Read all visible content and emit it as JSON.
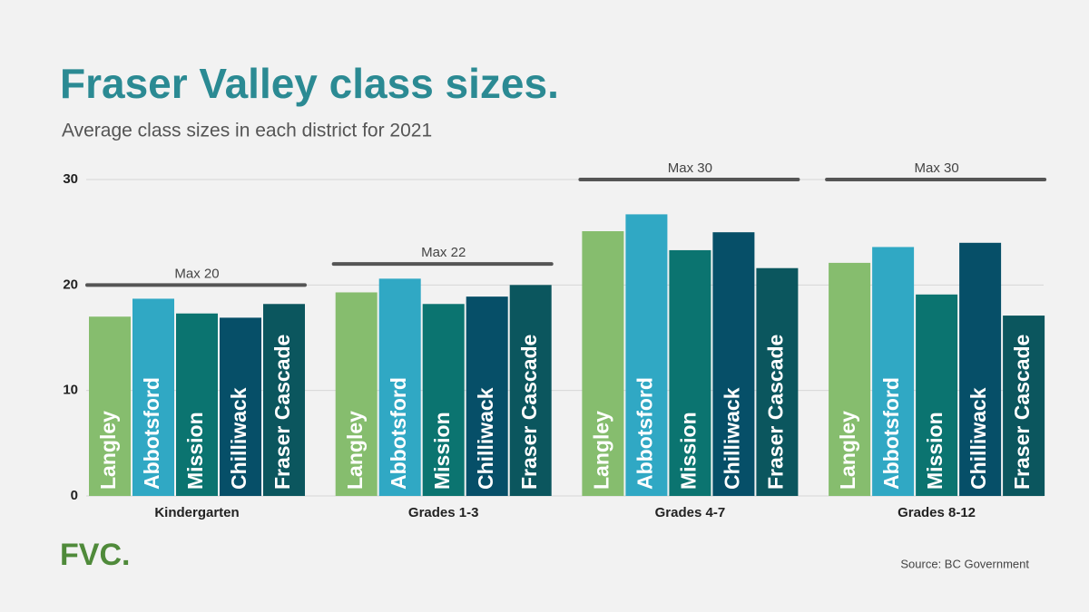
{
  "chart_data": {
    "type": "bar",
    "title": "Fraser Valley class sizes.",
    "subtitle": "Average class sizes in each district for 2021",
    "categories": [
      "Kindergarten",
      "Grades 1-3",
      "Grades 4-7",
      "Grades 8-12"
    ],
    "series": [
      {
        "name": "Langley",
        "color": "#86bd6e",
        "values": [
          17.0,
          19.3,
          25.1,
          22.1
        ]
      },
      {
        "name": "Abbotsford",
        "color": "#30a8c4",
        "values": [
          18.7,
          20.6,
          26.7,
          23.6
        ]
      },
      {
        "name": "Mission",
        "color": "#0b7470",
        "values": [
          17.3,
          18.2,
          23.3,
          19.1
        ]
      },
      {
        "name": "Chilliwack",
        "color": "#064f68",
        "values": [
          16.9,
          18.9,
          25.0,
          24.0
        ]
      },
      {
        "name": "Fraser Cascade",
        "color": "#0b565e",
        "values": [
          18.2,
          20.0,
          21.6,
          17.1
        ]
      }
    ],
    "max_lines": [
      {
        "label": "Max 20",
        "value": 20
      },
      {
        "label": "Max 22",
        "value": 22
      },
      {
        "label": "Max 30",
        "value": 30
      },
      {
        "label": "Max 30",
        "value": 30
      }
    ],
    "ylim": [
      0,
      30
    ],
    "yticks": [
      0,
      10,
      20,
      30
    ],
    "grid": true,
    "logo": "FVC.",
    "source": "Source: BC Government"
  }
}
